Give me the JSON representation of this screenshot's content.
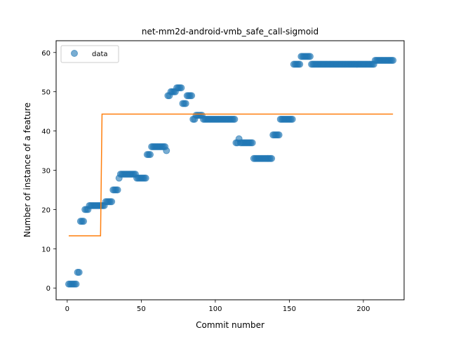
{
  "chart_data": {
    "type": "scatter",
    "title": "net-mm2d-android-vmb_safe_call-sigmoid",
    "xlabel": "Commit number",
    "ylabel": "Number of instance of a feature",
    "xlim": [
      -7.5,
      227.5
    ],
    "ylim": [
      -3,
      63
    ],
    "xticks": [
      0,
      50,
      100,
      150,
      200
    ],
    "yticks": [
      0,
      10,
      20,
      30,
      40,
      50,
      60
    ],
    "grid": false,
    "legend": {
      "position": "top-left",
      "entries": [
        "data"
      ]
    },
    "colors": {
      "data": "#1f77b4",
      "fit": "#ff7f0e"
    },
    "series": [
      {
        "name": "data",
        "kind": "scatter",
        "segments": [
          {
            "x_start": 1,
            "x_end": 6,
            "y": 1
          },
          {
            "x_start": 7,
            "x_end": 8,
            "y": 4
          },
          {
            "x_start": 9,
            "x_end": 11,
            "y": 17
          },
          {
            "x_start": 12,
            "x_end": 14,
            "y": 20
          },
          {
            "x_start": 15,
            "x_end": 25,
            "y": 21
          },
          {
            "x_start": 26,
            "x_end": 30,
            "y": 22
          },
          {
            "x_start": 31,
            "x_end": 34,
            "y": 25
          },
          {
            "x_start": 35,
            "x_end": 35,
            "y": 28
          },
          {
            "x_start": 36,
            "x_end": 46,
            "y": 29
          },
          {
            "x_start": 47,
            "x_end": 53,
            "y": 28
          },
          {
            "x_start": 54,
            "x_end": 56,
            "y": 34
          },
          {
            "x_start": 57,
            "x_end": 66,
            "y": 36
          },
          {
            "x_start": 67,
            "x_end": 67,
            "y": 35
          },
          {
            "x_start": 68,
            "x_end": 69,
            "y": 49
          },
          {
            "x_start": 70,
            "x_end": 73,
            "y": 50
          },
          {
            "x_start": 74,
            "x_end": 77,
            "y": 51
          },
          {
            "x_start": 78,
            "x_end": 80,
            "y": 47
          },
          {
            "x_start": 81,
            "x_end": 84,
            "y": 49
          },
          {
            "x_start": 85,
            "x_end": 86,
            "y": 43
          },
          {
            "x_start": 87,
            "x_end": 91,
            "y": 44
          },
          {
            "x_start": 92,
            "x_end": 113,
            "y": 43
          },
          {
            "x_start": 114,
            "x_end": 115,
            "y": 37
          },
          {
            "x_start": 116,
            "x_end": 116,
            "y": 38
          },
          {
            "x_start": 117,
            "x_end": 125,
            "y": 37
          },
          {
            "x_start": 126,
            "x_end": 138,
            "y": 33
          },
          {
            "x_start": 139,
            "x_end": 143,
            "y": 39
          },
          {
            "x_start": 144,
            "x_end": 152,
            "y": 43
          },
          {
            "x_start": 153,
            "x_end": 157,
            "y": 57
          },
          {
            "x_start": 158,
            "x_end": 164,
            "y": 59
          },
          {
            "x_start": 165,
            "x_end": 207,
            "y": 57
          },
          {
            "x_start": 208,
            "x_end": 220,
            "y": 58
          }
        ]
      },
      {
        "name": "",
        "kind": "line",
        "x": [
          1,
          22.5,
          23.5,
          220
        ],
        "y": [
          13.3,
          13.3,
          44.3,
          44.3
        ]
      }
    ]
  }
}
